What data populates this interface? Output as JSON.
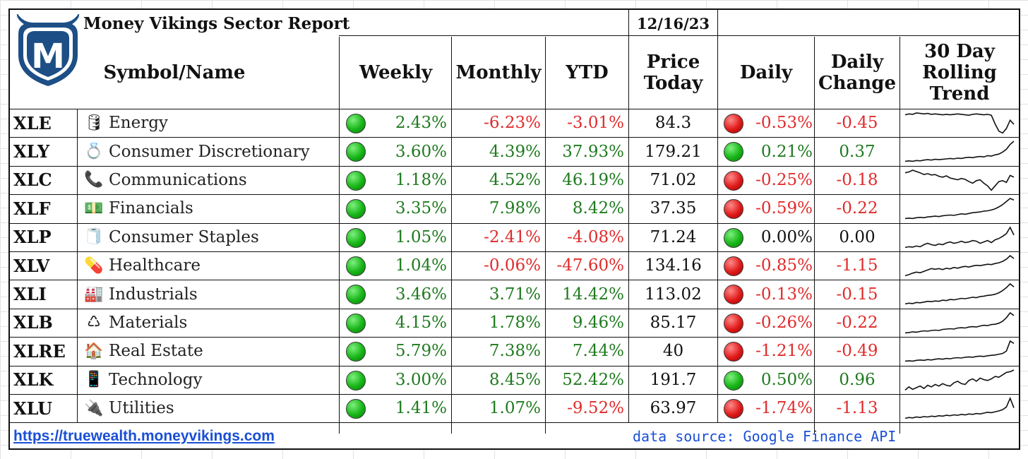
{
  "report": {
    "title": "Money Vikings Sector Report",
    "date": "12/16/23",
    "logo_letter": "M",
    "website": "https://truewealth.moneyvikings.com",
    "data_source": "data source: Google Finance API"
  },
  "columns": {
    "symbol_name": "Symbol/Name",
    "weekly": "Weekly",
    "monthly": "Monthly",
    "ytd": "YTD",
    "price_line1": "Price",
    "price_line2": "Today",
    "daily": "Daily",
    "daily_change_line1": "Daily",
    "daily_change_line2": "Change",
    "trend_line1": "30 Day",
    "trend_line2": "Rolling",
    "trend_line3": "Trend"
  },
  "colors": {
    "positive": "#1f7a1f",
    "negative": "#e02b2b",
    "link": "#1a4fd6",
    "logo": "#1d4f86"
  },
  "rows": [
    {
      "symbol": "XLE",
      "icon": "🛢",
      "icon_name": "oil-barrel-icon",
      "name": "Energy",
      "weekly_status": "up",
      "weekly": "2.43%",
      "monthly": "-6.23%",
      "ytd": "-3.01%",
      "price": "84.3",
      "daily_status": "down",
      "daily": "-0.53%",
      "change": "-0.45",
      "trend": [
        70,
        72,
        71,
        74,
        73,
        72,
        73,
        71,
        72,
        71,
        70,
        71,
        70,
        71,
        72,
        71,
        70,
        69,
        71,
        72,
        71,
        70,
        71,
        69,
        50,
        34,
        30,
        40,
        58,
        49
      ]
    },
    {
      "symbol": "XLY",
      "icon": "💍",
      "icon_name": "ring-icon",
      "name": "Consumer Discretionary",
      "weekly_status": "up",
      "weekly": "3.60%",
      "monthly": "4.39%",
      "ytd": "37.93%",
      "price": "179.21",
      "daily_status": "up",
      "daily": "0.21%",
      "change": "0.37",
      "trend": [
        10,
        11,
        10,
        12,
        11,
        13,
        14,
        13,
        15,
        14,
        15,
        16,
        17,
        16,
        18,
        17,
        19,
        20,
        19,
        21,
        22,
        21,
        24,
        23,
        26,
        28,
        33,
        40,
        52,
        60
      ]
    },
    {
      "symbol": "XLC",
      "icon": "📞",
      "icon_name": "telephone-icon",
      "name": "Communications",
      "weekly_status": "up",
      "weekly": "1.18%",
      "monthly": "4.52%",
      "ytd": "46.19%",
      "price": "71.02",
      "daily_status": "down",
      "daily": "-0.25%",
      "change": "-0.18",
      "trend": [
        60,
        62,
        66,
        63,
        60,
        56,
        58,
        55,
        56,
        52,
        50,
        53,
        48,
        46,
        44,
        47,
        45,
        40,
        36,
        42,
        44,
        36,
        30,
        20,
        30,
        40,
        42,
        38,
        54,
        50
      ]
    },
    {
      "symbol": "XLF",
      "icon": "💵",
      "icon_name": "money-icon",
      "name": "Financials",
      "weekly_status": "up",
      "weekly": "3.35%",
      "monthly": "7.98%",
      "ytd": "8.42%",
      "price": "37.35",
      "daily_status": "down",
      "daily": "-0.59%",
      "change": "-0.22",
      "trend": [
        10,
        11,
        10,
        12,
        13,
        12,
        14,
        15,
        16,
        15,
        17,
        18,
        19,
        18,
        20,
        22,
        21,
        23,
        25,
        26,
        27,
        29,
        30,
        32,
        35,
        40,
        46,
        54,
        62,
        58
      ]
    },
    {
      "symbol": "XLP",
      "icon": "🧻",
      "icon_name": "paper-roll-icon",
      "name": "Consumer Staples",
      "weekly_status": "up",
      "weekly": "1.05%",
      "monthly": "-2.41%",
      "ytd": "-4.08%",
      "price": "71.24",
      "daily_status": "up",
      "daily": "0.00%",
      "change": "0.00",
      "trend": [
        12,
        14,
        13,
        16,
        14,
        20,
        24,
        20,
        18,
        22,
        20,
        25,
        28,
        24,
        26,
        30,
        26,
        28,
        32,
        30,
        24,
        28,
        32,
        26,
        34,
        38,
        44,
        52,
        70,
        48
      ]
    },
    {
      "symbol": "XLV",
      "icon": "💊",
      "icon_name": "pill-icon",
      "name": "Healthcare",
      "weekly_status": "up",
      "weekly": "1.04%",
      "monthly": "-0.06%",
      "ytd": "-47.60%",
      "price": "134.16",
      "daily_status": "down",
      "daily": "-0.85%",
      "change": "-1.15",
      "trend": [
        10,
        13,
        17,
        20,
        18,
        22,
        26,
        30,
        28,
        30,
        27,
        31,
        29,
        33,
        31,
        34,
        36,
        34,
        37,
        39,
        38,
        40,
        42,
        41,
        44,
        46,
        50,
        56,
        66,
        58
      ]
    },
    {
      "symbol": "XLI",
      "icon": "🏭",
      "icon_name": "factory-icon",
      "name": "Industrials",
      "weekly_status": "up",
      "weekly": "3.46%",
      "monthly": "3.71%",
      "ytd": "14.42%",
      "price": "113.02",
      "daily_status": "down",
      "daily": "-0.13%",
      "change": "-0.15",
      "trend": [
        10,
        12,
        11,
        14,
        13,
        15,
        17,
        16,
        18,
        17,
        20,
        19,
        22,
        21,
        23,
        25,
        24,
        26,
        28,
        27,
        30,
        31,
        33,
        34,
        36,
        40,
        46,
        54,
        64,
        56
      ]
    },
    {
      "symbol": "XLB",
      "icon": "♺",
      "icon_name": "recycle-icon",
      "name": "Materials",
      "weekly_status": "up",
      "weekly": "4.15%",
      "monthly": "1.78%",
      "ytd": "9.46%",
      "price": "85.17",
      "daily_status": "down",
      "daily": "-0.26%",
      "change": "-0.22",
      "trend": [
        10,
        11,
        13,
        12,
        14,
        16,
        15,
        17,
        18,
        17,
        20,
        21,
        22,
        21,
        24,
        25,
        24,
        27,
        28,
        27,
        30,
        32,
        31,
        34,
        35,
        38,
        44,
        54,
        68,
        60
      ]
    },
    {
      "symbol": "XLRE",
      "icon": "🏠",
      "icon_name": "house-icon",
      "name": "Real Estate",
      "weekly_status": "up",
      "weekly": "5.79%",
      "monthly": "7.38%",
      "ytd": "7.44%",
      "price": "40",
      "daily_status": "down",
      "daily": "-1.21%",
      "change": "-0.49",
      "trend": [
        10,
        11,
        10,
        12,
        13,
        12,
        14,
        13,
        15,
        16,
        15,
        17,
        16,
        18,
        19,
        18,
        20,
        21,
        20,
        22,
        23,
        22,
        24,
        25,
        26,
        28,
        30,
        36,
        62,
        56
      ]
    },
    {
      "symbol": "XLK",
      "icon": "📱",
      "icon_name": "mobile-phone-icon",
      "name": "Technology",
      "weekly_status": "up",
      "weekly": "3.00%",
      "monthly": "8.45%",
      "ytd": "52.42%",
      "price": "191.7",
      "daily_status": "up",
      "daily": "0.50%",
      "change": "0.96",
      "trend": [
        12,
        20,
        14,
        18,
        22,
        16,
        24,
        20,
        26,
        22,
        28,
        24,
        22,
        30,
        34,
        28,
        26,
        36,
        40,
        34,
        42,
        38,
        36,
        40,
        46,
        44,
        50,
        56,
        58,
        62
      ]
    },
    {
      "symbol": "XLU",
      "icon": "🔌",
      "icon_name": "electric-plug-icon",
      "name": "Utilities",
      "weekly_status": "up",
      "weekly": "1.41%",
      "monthly": "1.07%",
      "ytd": "-9.52%",
      "price": "63.97",
      "daily_status": "down",
      "daily": "-1.74%",
      "change": "-1.13",
      "trend": [
        10,
        12,
        11,
        13,
        12,
        14,
        13,
        15,
        14,
        16,
        15,
        17,
        16,
        18,
        17,
        19,
        18,
        20,
        19,
        21,
        20,
        22,
        24,
        23,
        25,
        27,
        30,
        36,
        56,
        34
      ]
    }
  ]
}
